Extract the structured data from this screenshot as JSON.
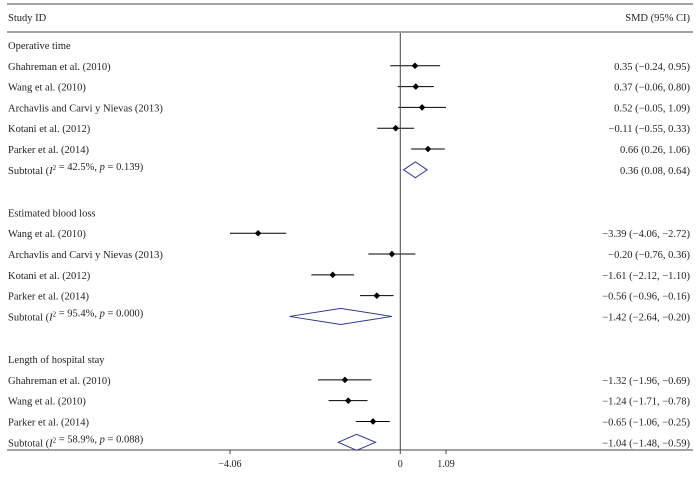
{
  "chart_data": {
    "type": "forest",
    "header": {
      "study": "Study ID",
      "effect": "SMD (95% CI)"
    },
    "xlim": [
      -4.06,
      1.09
    ],
    "null_line": 0,
    "x_ticks": [
      {
        "value": -4.06,
        "label": "−4.06"
      },
      {
        "value": 0,
        "label": "0"
      },
      {
        "value": 1.09,
        "label": "1.09"
      }
    ],
    "groups": [
      {
        "name": "Operative time",
        "studies": [
          {
            "label": "Ghahreman et al. (2010)",
            "est": 0.35,
            "lo": -0.24,
            "hi": 0.95,
            "text": "0.35 (−0.24, 0.95)"
          },
          {
            "label": "Wang et al. (2010)",
            "est": 0.37,
            "lo": -0.06,
            "hi": 0.8,
            "text": "0.37 (−0.06, 0.80)"
          },
          {
            "label": "Archavlis and Carvi y Nievas (2013)",
            "est": 0.52,
            "lo": -0.05,
            "hi": 1.09,
            "text": "0.52 (−0.05, 1.09)"
          },
          {
            "label": "Kotani et al. (2012)",
            "est": -0.11,
            "lo": -0.55,
            "hi": 0.33,
            "text": "−0.11 (−0.55, 0.33)"
          },
          {
            "label": "Parker et al. (2014)",
            "est": 0.66,
            "lo": 0.26,
            "hi": 1.06,
            "text": "0.66 (0.26, 1.06)"
          }
        ],
        "subtotal": {
          "i2": "42.5%",
          "p": "0.139",
          "est": 0.36,
          "lo": 0.08,
          "hi": 0.64,
          "text": "0.36 (0.08, 0.64)"
        }
      },
      {
        "name": "Estimated blood loss",
        "studies": [
          {
            "label": "Wang et al. (2010)",
            "est": -3.39,
            "lo": -4.06,
            "hi": -2.72,
            "text": "−3.39 (−4.06, −2.72)"
          },
          {
            "label": "Archavlis and Carvi y Nievas (2013)",
            "est": -0.2,
            "lo": -0.76,
            "hi": 0.36,
            "text": "−0.20 (−0.76, 0.36)"
          },
          {
            "label": "Kotani et al. (2012)",
            "est": -1.61,
            "lo": -2.12,
            "hi": -1.1,
            "text": "−1.61 (−2.12, −1.10)"
          },
          {
            "label": "Parker et al. (2014)",
            "est": -0.56,
            "lo": -0.96,
            "hi": -0.16,
            "text": "−0.56 (−0.96, −0.16)"
          }
        ],
        "subtotal": {
          "i2": "95.4%",
          "p": "0.000",
          "est": -1.42,
          "lo": -2.64,
          "hi": -0.2,
          "text": "−1.42 (−2.64, −0.20)"
        }
      },
      {
        "name": "Length of hospital stay",
        "studies": [
          {
            "label": "Ghahreman et al. (2010)",
            "est": -1.32,
            "lo": -1.96,
            "hi": -0.69,
            "text": "−1.32 (−1.96, −0.69)"
          },
          {
            "label": "Wang et al. (2010)",
            "est": -1.24,
            "lo": -1.71,
            "hi": -0.78,
            "text": "−1.24 (−1.71, −0.78)"
          },
          {
            "label": "Parker et al. (2014)",
            "est": -0.65,
            "lo": -1.06,
            "hi": -0.25,
            "text": "−0.65 (−1.06, −0.25)"
          }
        ],
        "subtotal": {
          "i2": "58.9%",
          "p": "0.088",
          "est": -1.04,
          "lo": -1.48,
          "hi": -0.59,
          "text": "−1.04 (−1.48, −0.59)"
        }
      }
    ],
    "colors": {
      "diamond": "#2b3a8c",
      "marker": "#000000",
      "rule": "#444444"
    }
  }
}
